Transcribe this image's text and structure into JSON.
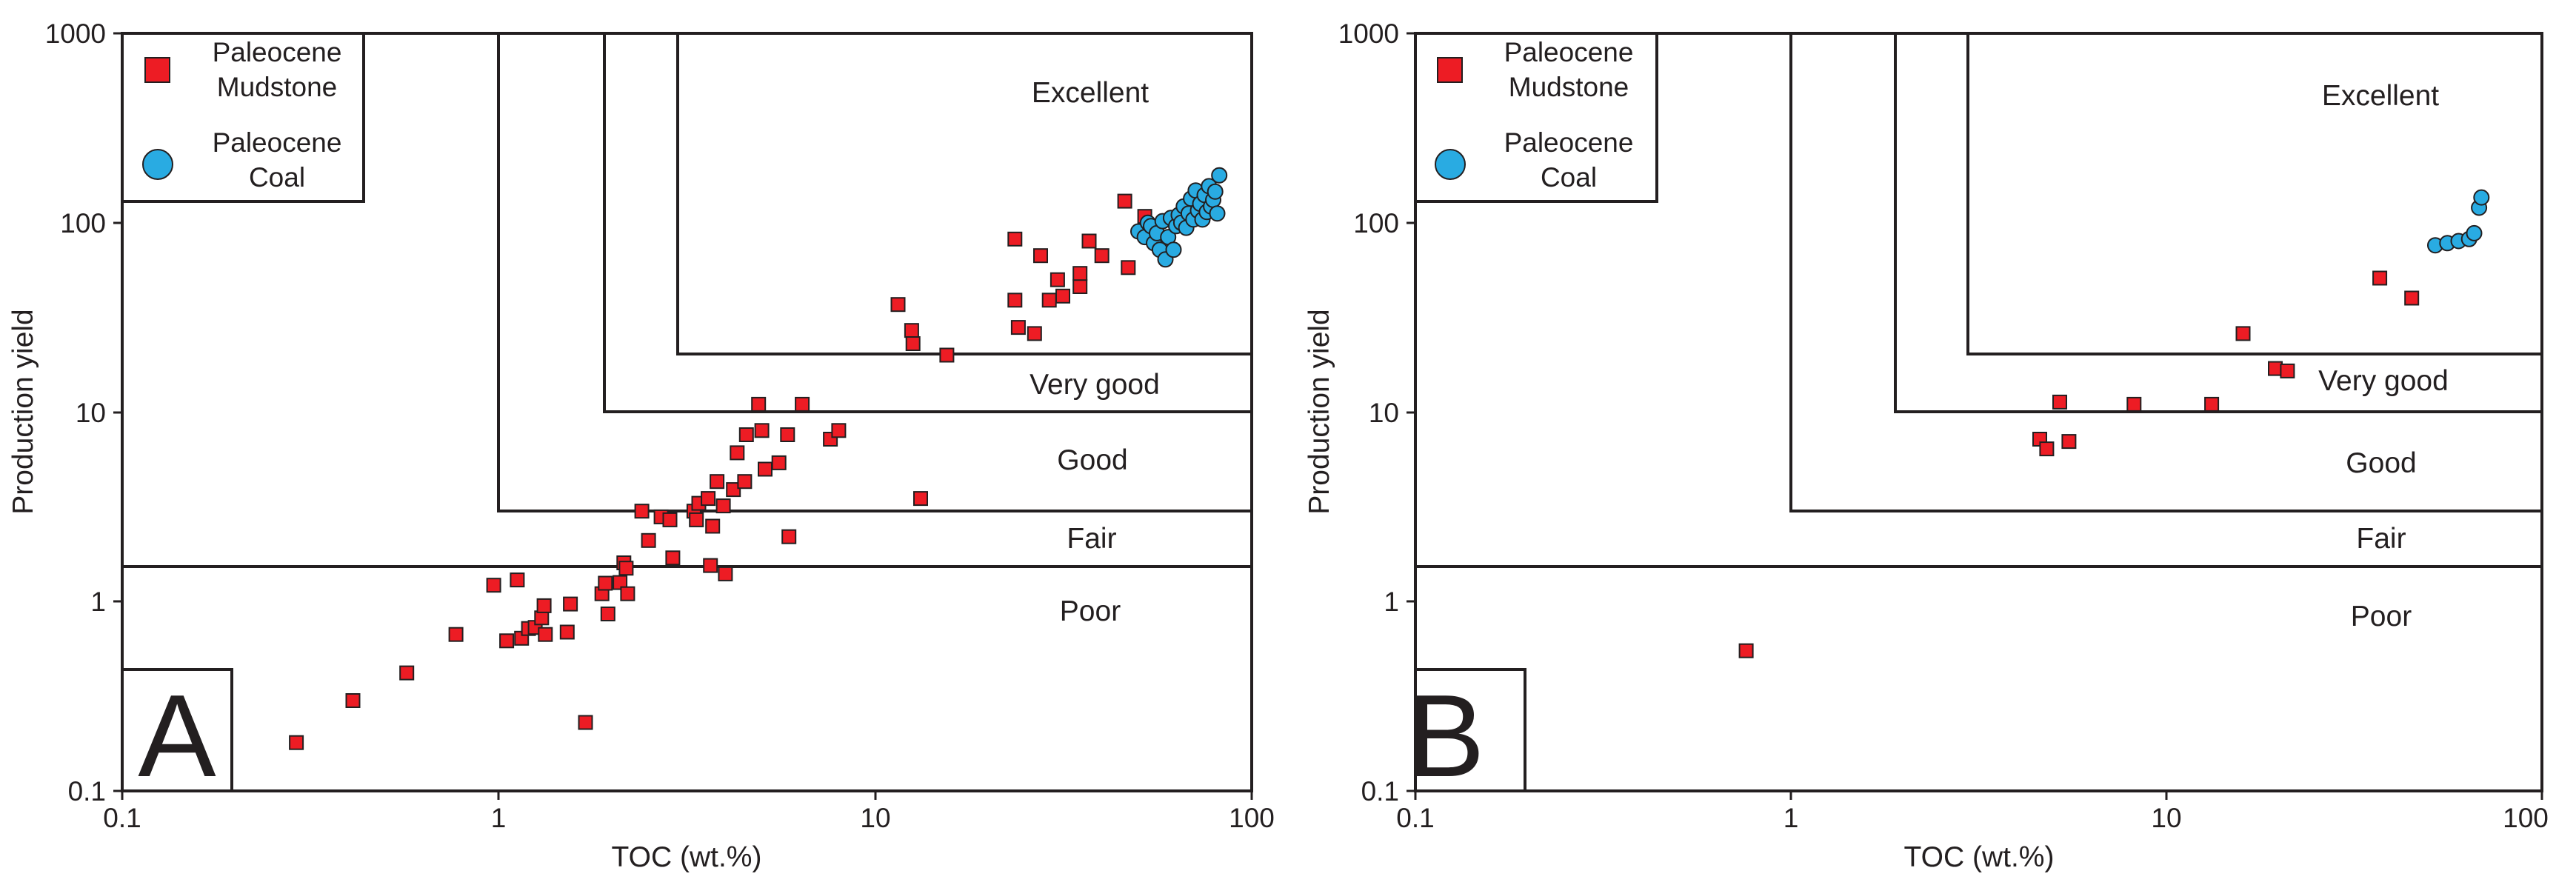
{
  "chart_data": [
    {
      "type": "scatter",
      "panel_letter": "A",
      "xlabel": "TOC (wt.%)",
      "ylabel": "Production yield",
      "xscale": "log",
      "yscale": "log",
      "xlim": [
        0.1,
        100
      ],
      "ylim": [
        0.1,
        1000
      ],
      "x_tick_labels": [
        "0.1",
        "1",
        "10",
        "100"
      ],
      "y_tick_labels": [
        "0.1",
        "1",
        "10",
        "100",
        "1000"
      ],
      "legend": {
        "placement": "top-left",
        "entries": [
          {
            "line1": "Paleocene",
            "line2": "Mudstone",
            "marker": "square",
            "color": "#ed1c24"
          },
          {
            "line1": "Paleocene",
            "line2": "Coal",
            "marker": "circle",
            "color": "#29abe2"
          }
        ]
      },
      "zones": [
        {
          "label": "Poor",
          "toc_min": 0.1,
          "py_min": 0.1,
          "py_max": 1.6
        },
        {
          "label": "Fair",
          "toc_min": 1,
          "py_min": 1.6,
          "py_max": 3.2
        },
        {
          "label": "Good",
          "toc_min": 2,
          "py_min": 3.2,
          "py_max": 10.3
        },
        {
          "label": "Very good",
          "toc_min": 3,
          "py_min": 10.3,
          "py_max": 21
        },
        {
          "label": "Excellent",
          "toc_min": 3,
          "py_min": 21,
          "py_max": 1000
        }
      ],
      "series": [
        {
          "name": "Paleocene Mudstone",
          "marker": "square",
          "points": [
            [
              0.29,
              0.18
            ],
            [
              0.41,
              0.3
            ],
            [
              0.57,
              0.42
            ],
            [
              0.77,
              0.67
            ],
            [
              0.97,
              1.22
            ],
            [
              1.05,
              0.62
            ],
            [
              1.12,
              1.3
            ],
            [
              1.15,
              0.64
            ],
            [
              1.2,
              0.72
            ],
            [
              1.25,
              0.73
            ],
            [
              1.3,
              0.82
            ],
            [
              1.32,
              0.95
            ],
            [
              1.33,
              0.67
            ],
            [
              1.52,
              0.69
            ],
            [
              1.55,
              0.97
            ],
            [
              1.7,
              0.23
            ],
            [
              1.88,
              1.1
            ],
            [
              1.92,
              1.25
            ],
            [
              1.95,
              0.86
            ],
            [
              2.1,
              1.26
            ],
            [
              2.15,
              1.6
            ],
            [
              2.18,
              1.5
            ],
            [
              2.2,
              1.1
            ],
            [
              2.4,
              3.0
            ],
            [
              2.5,
              2.1
            ],
            [
              2.7,
              2.8
            ],
            [
              2.85,
              2.7
            ],
            [
              2.9,
              1.7
            ],
            [
              3.3,
              3.0
            ],
            [
              3.35,
              2.7
            ],
            [
              3.4,
              3.3
            ],
            [
              3.6,
              3.5
            ],
            [
              3.65,
              1.55
            ],
            [
              3.7,
              2.5
            ],
            [
              3.8,
              4.3
            ],
            [
              3.95,
              3.2
            ],
            [
              4.0,
              1.4
            ],
            [
              4.2,
              3.9
            ],
            [
              4.3,
              6.1
            ],
            [
              4.5,
              4.3
            ],
            [
              4.55,
              7.6
            ],
            [
              4.9,
              11.0
            ],
            [
              5.0,
              8.0
            ],
            [
              5.1,
              5.0
            ],
            [
              5.55,
              5.4
            ],
            [
              5.85,
              7.6
            ],
            [
              5.9,
              2.2
            ],
            [
              6.4,
              11.0
            ],
            [
              7.6,
              7.2
            ],
            [
              8.0,
              8.0
            ],
            [
              11.5,
              37.0
            ],
            [
              12.5,
              27.0
            ],
            [
              12.6,
              23.0
            ],
            [
              13.2,
              3.5
            ],
            [
              15.5,
              20.0
            ],
            [
              23.5,
              82.0
            ],
            [
              23.5,
              39.0
            ],
            [
              24.0,
              28.0
            ],
            [
              26.5,
              26.0
            ],
            [
              27.5,
              67.0
            ],
            [
              29.0,
              39.0
            ],
            [
              30.5,
              50.0
            ],
            [
              31.5,
              41.0
            ],
            [
              35.0,
              46.0
            ],
            [
              35.0,
              54.0
            ],
            [
              37.0,
              80.0
            ],
            [
              40.0,
              67.0
            ],
            [
              46.0,
              130.0
            ],
            [
              47.0,
              58.0
            ],
            [
              52.0,
              108.0
            ]
          ]
        },
        {
          "name": "Paleocene Coal",
          "marker": "circle",
          "points": [
            [
              50,
              90
            ],
            [
              52,
              84
            ],
            [
              53,
              100
            ],
            [
              54,
              96
            ],
            [
              55,
              78
            ],
            [
              56,
              88
            ],
            [
              57,
              72
            ],
            [
              58,
              102
            ],
            [
              59,
              64
            ],
            [
              60,
              84
            ],
            [
              61,
              106
            ],
            [
              62,
              72
            ],
            [
              63,
              96
            ],
            [
              64,
              110
            ],
            [
              65,
              100
            ],
            [
              66,
              122
            ],
            [
              67,
              94
            ],
            [
              68,
              112
            ],
            [
              69,
              134
            ],
            [
              70,
              104
            ],
            [
              71,
              148
            ],
            [
              72,
              116
            ],
            [
              73,
              126
            ],
            [
              74,
              104
            ],
            [
              75,
              140
            ],
            [
              76,
              114
            ],
            [
              77,
              156
            ],
            [
              78,
              122
            ],
            [
              79,
              132
            ],
            [
              80,
              146
            ],
            [
              81,
              112
            ],
            [
              82,
              178
            ]
          ]
        }
      ]
    },
    {
      "type": "scatter",
      "panel_letter": "B",
      "xlabel": "TOC (wt.%)",
      "ylabel": "Production yield",
      "xscale": "log",
      "yscale": "log",
      "xlim": [
        0.1,
        100
      ],
      "ylim": [
        0.1,
        1000
      ],
      "x_tick_labels": [
        "0.1",
        "1",
        "10",
        "100"
      ],
      "y_tick_labels": [
        "0.1",
        "1",
        "10",
        "100",
        "1000"
      ],
      "legend": {
        "placement": "top-left",
        "entries": [
          {
            "line1": "Paleocene",
            "line2": "Mudstone",
            "marker": "square",
            "color": "#ed1c24"
          },
          {
            "line1": "Paleocene",
            "line2": "Coal",
            "marker": "circle",
            "color": "#29abe2"
          }
        ]
      },
      "zones": [
        {
          "label": "Poor",
          "toc_min": 0.1,
          "py_min": 0.1,
          "py_max": 1.6
        },
        {
          "label": "Fair",
          "toc_min": 1,
          "py_min": 1.6,
          "py_max": 3.2
        },
        {
          "label": "Good",
          "toc_min": 2,
          "py_min": 3.2,
          "py_max": 10.3
        },
        {
          "label": "Very good",
          "toc_min": 3,
          "py_min": 10.3,
          "py_max": 21
        },
        {
          "label": "Excellent",
          "toc_min": 3,
          "py_min": 21,
          "py_max": 1000
        }
      ],
      "series": [
        {
          "name": "Paleocene Mudstone",
          "marker": "square",
          "points": [
            [
              0.76,
              0.55
            ],
            [
              4.6,
              7.2
            ],
            [
              4.8,
              6.4
            ],
            [
              5.2,
              11.3
            ],
            [
              5.5,
              7.0
            ],
            [
              8.2,
              11.0
            ],
            [
              13.2,
              11.0
            ],
            [
              16.0,
              26.0
            ],
            [
              19.5,
              17.0
            ],
            [
              21.0,
              16.5
            ],
            [
              37.0,
              51.0
            ],
            [
              45.0,
              40.0
            ]
          ]
        },
        {
          "name": "Paleocene Coal",
          "marker": "circle",
          "points": [
            [
              52,
              76
            ],
            [
              56,
              78
            ],
            [
              60,
              80
            ],
            [
              64,
              82
            ],
            [
              66,
              88
            ],
            [
              68,
              120
            ],
            [
              69,
              136
            ]
          ]
        }
      ]
    }
  ]
}
